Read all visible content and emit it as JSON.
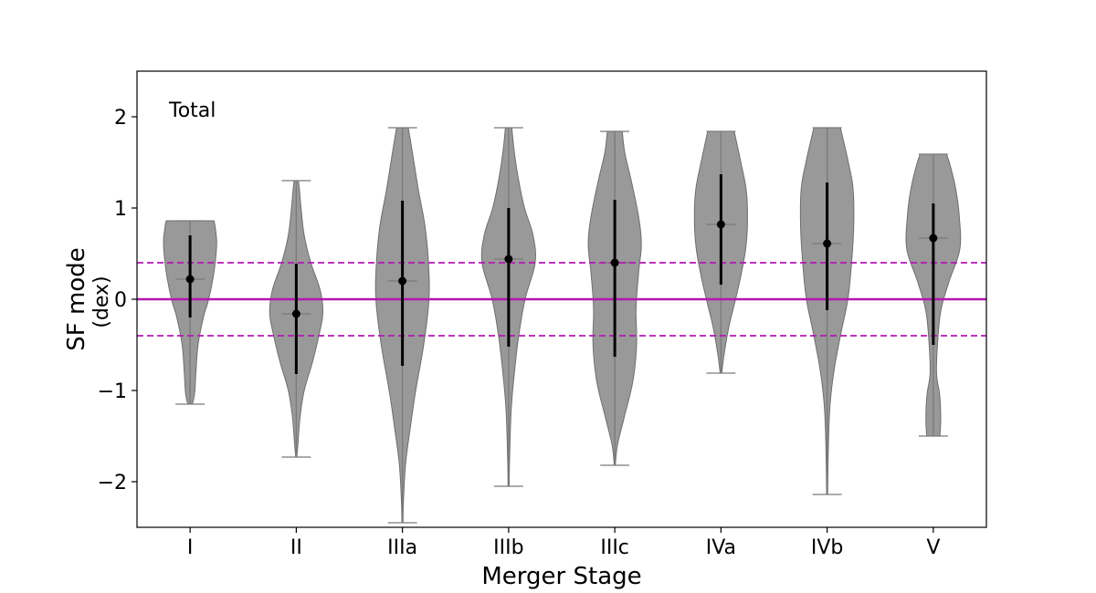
{
  "chart_data": {
    "type": "violin",
    "panel_label": "Total",
    "xlabel": "Merger Stage",
    "ylabel": "SF mode",
    "ylabel_unit": "(dex)",
    "ylim": [
      -2.5,
      2.5
    ],
    "yticks": [
      -2,
      -1,
      0,
      1,
      2
    ],
    "ytick_labels": [
      "−2",
      "−1",
      "0",
      "1",
      "2"
    ],
    "grid": false,
    "categories": [
      "I",
      "II",
      "IIIa",
      "IIIb",
      "IIIc",
      "IVa",
      "IVb",
      "V"
    ],
    "reference_lines": [
      {
        "y": 0,
        "style": "solid",
        "color": "#b317b3"
      },
      {
        "y": 0.4,
        "style": "dashed",
        "color": "#b317b3"
      },
      {
        "y": -0.4,
        "style": "dashed",
        "color": "#b317b3"
      }
    ],
    "violin_color": "#808080",
    "stages": [
      {
        "name": "I",
        "min": -1.15,
        "max": 0.86,
        "median": 0.22,
        "median_line": 0.22,
        "err_low": -0.2,
        "err_high": 0.7,
        "profile": [
          [
            -1.15,
            0.08
          ],
          [
            -1.1,
            0.13
          ],
          [
            -1.0,
            0.18
          ],
          [
            -0.8,
            0.22
          ],
          [
            -0.5,
            0.3
          ],
          [
            -0.2,
            0.5
          ],
          [
            0.0,
            0.7
          ],
          [
            0.3,
            0.9
          ],
          [
            0.6,
            1.0
          ],
          [
            0.78,
            0.95
          ],
          [
            0.86,
            0.9
          ]
        ]
      },
      {
        "name": "II",
        "min": -1.73,
        "max": 1.3,
        "median": -0.16,
        "median_line": -0.16,
        "err_low": -0.82,
        "err_high": 0.39,
        "profile": [
          [
            -1.73,
            0.02
          ],
          [
            -1.6,
            0.06
          ],
          [
            -1.3,
            0.14
          ],
          [
            -1.0,
            0.3
          ],
          [
            -0.7,
            0.6
          ],
          [
            -0.4,
            0.85
          ],
          [
            -0.15,
            1.0
          ],
          [
            0.1,
            0.9
          ],
          [
            0.4,
            0.55
          ],
          [
            0.7,
            0.3
          ],
          [
            1.0,
            0.18
          ],
          [
            1.2,
            0.12
          ],
          [
            1.3,
            0.08
          ]
        ]
      },
      {
        "name": "IIIa",
        "min": -2.45,
        "max": 1.88,
        "median": 0.2,
        "median_line": 0.2,
        "err_low": -0.73,
        "err_high": 1.08,
        "profile": [
          [
            -2.45,
            0.02
          ],
          [
            -2.2,
            0.04
          ],
          [
            -1.8,
            0.12
          ],
          [
            -1.4,
            0.3
          ],
          [
            -1.0,
            0.5
          ],
          [
            -0.5,
            0.8
          ],
          [
            0.0,
            1.0
          ],
          [
            0.4,
            0.98
          ],
          [
            0.8,
            0.85
          ],
          [
            1.2,
            0.6
          ],
          [
            1.6,
            0.38
          ],
          [
            1.88,
            0.22
          ]
        ]
      },
      {
        "name": "IIIb",
        "min": -2.05,
        "max": 1.88,
        "median": 0.44,
        "median_line": 0.44,
        "err_low": -0.52,
        "err_high": 1.0,
        "profile": [
          [
            -2.05,
            0.02
          ],
          [
            -1.7,
            0.04
          ],
          [
            -1.2,
            0.1
          ],
          [
            -0.8,
            0.22
          ],
          [
            -0.4,
            0.38
          ],
          [
            0.0,
            0.62
          ],
          [
            0.4,
            1.0
          ],
          [
            0.7,
            0.92
          ],
          [
            1.0,
            0.6
          ],
          [
            1.3,
            0.38
          ],
          [
            1.6,
            0.22
          ],
          [
            1.88,
            0.12
          ]
        ]
      },
      {
        "name": "IIIc",
        "min": -1.82,
        "max": 1.84,
        "median": 0.4,
        "median_line": 0.4,
        "err_low": -0.63,
        "err_high": 1.09,
        "profile": [
          [
            -1.82,
            0.02
          ],
          [
            -1.6,
            0.1
          ],
          [
            -1.3,
            0.35
          ],
          [
            -0.9,
            0.68
          ],
          [
            -0.5,
            0.82
          ],
          [
            -0.1,
            0.8
          ],
          [
            0.3,
            0.9
          ],
          [
            0.6,
            1.0
          ],
          [
            0.9,
            0.9
          ],
          [
            1.3,
            0.62
          ],
          [
            1.6,
            0.38
          ],
          [
            1.84,
            0.28
          ]
        ]
      },
      {
        "name": "IVa",
        "min": -0.81,
        "max": 1.84,
        "median": 0.82,
        "median_line": 0.82,
        "err_low": 0.16,
        "err_high": 1.37,
        "profile": [
          [
            -0.81,
            0.03
          ],
          [
            -0.6,
            0.12
          ],
          [
            -0.3,
            0.3
          ],
          [
            0.0,
            0.55
          ],
          [
            0.3,
            0.78
          ],
          [
            0.6,
            0.95
          ],
          [
            0.9,
            1.0
          ],
          [
            1.2,
            0.95
          ],
          [
            1.5,
            0.75
          ],
          [
            1.84,
            0.5
          ]
        ]
      },
      {
        "name": "IVb",
        "min": -2.14,
        "max": 1.88,
        "median": 0.61,
        "median_line": 0.61,
        "err_low": -0.12,
        "err_high": 1.28,
        "profile": [
          [
            -2.14,
            0.02
          ],
          [
            -1.7,
            0.04
          ],
          [
            -1.2,
            0.1
          ],
          [
            -0.8,
            0.25
          ],
          [
            -0.4,
            0.5
          ],
          [
            0.0,
            0.78
          ],
          [
            0.4,
            0.92
          ],
          [
            0.8,
            1.0
          ],
          [
            1.2,
            0.98
          ],
          [
            1.5,
            0.8
          ],
          [
            1.88,
            0.5
          ]
        ]
      },
      {
        "name": "V",
        "min": -1.5,
        "max": 1.59,
        "median": 0.67,
        "median_line": 0.67,
        "err_low": -0.5,
        "err_high": 1.05,
        "profile": [
          [
            -1.5,
            0.25
          ],
          [
            -1.3,
            0.28
          ],
          [
            -1.05,
            0.24
          ],
          [
            -0.8,
            0.12
          ],
          [
            -0.4,
            0.18
          ],
          [
            -0.1,
            0.3
          ],
          [
            0.2,
            0.6
          ],
          [
            0.55,
            1.0
          ],
          [
            0.9,
            0.98
          ],
          [
            1.2,
            0.85
          ],
          [
            1.45,
            0.65
          ],
          [
            1.59,
            0.5
          ]
        ]
      }
    ]
  }
}
